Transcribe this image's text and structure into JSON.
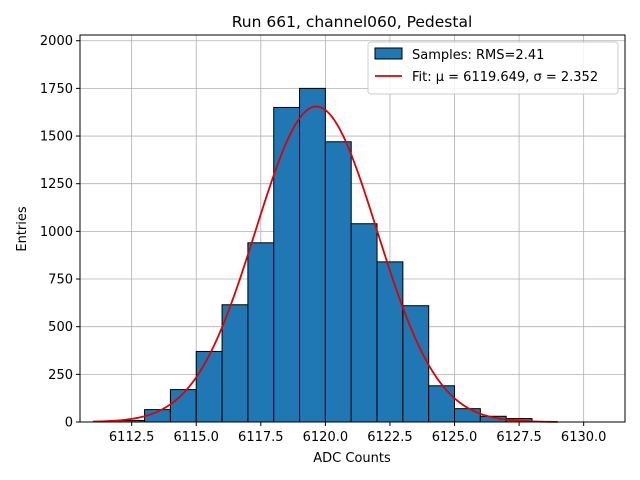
{
  "chart_data": {
    "type": "bar",
    "title": "Run 661, channel060, Pedestal",
    "xlabel": "ADC Counts",
    "ylabel": "Entries",
    "xlim": [
      6110.5,
      6131.6
    ],
    "ylim": [
      0,
      2030
    ],
    "xticks": [
      6112.5,
      6115.0,
      6117.5,
      6120.0,
      6122.5,
      6125.0,
      6127.5,
      6130.0
    ],
    "xtick_labels": [
      "6112.5",
      "6115.0",
      "6117.5",
      "6120.0",
      "6122.5",
      "6125.0",
      "6127.5",
      "6130.0"
    ],
    "yticks": [
      0,
      250,
      500,
      750,
      1000,
      1250,
      1500,
      1750,
      2000
    ],
    "ytick_labels": [
      "0",
      "250",
      "500",
      "750",
      "1000",
      "1250",
      "1500",
      "1750",
      "2000"
    ],
    "grid": true,
    "legend_position": "upper right",
    "bins": {
      "edges": [
        6112.0,
        6113.0,
        6114.0,
        6115.0,
        6116.0,
        6117.0,
        6118.0,
        6119.0,
        6120.0,
        6121.0,
        6122.0,
        6123.0,
        6124.0,
        6125.0,
        6126.0,
        6127.0,
        6128.0
      ],
      "counts": [
        8,
        65,
        170,
        370,
        615,
        940,
        1650,
        1750,
        1470,
        1040,
        840,
        610,
        190,
        70,
        30,
        18
      ]
    },
    "series": [
      {
        "name": "Samples: RMS=2.41",
        "kind": "histogram",
        "color": "#1f77b4",
        "edgecolor": "#000000"
      },
      {
        "name": "Fit: μ = 6119.649, σ = 2.352",
        "kind": "line",
        "color": "#e00000",
        "mu": 6119.649,
        "sigma": 2.352,
        "amplitude": 1655,
        "x_range": [
          6111.0,
          6129.0
        ]
      }
    ]
  }
}
